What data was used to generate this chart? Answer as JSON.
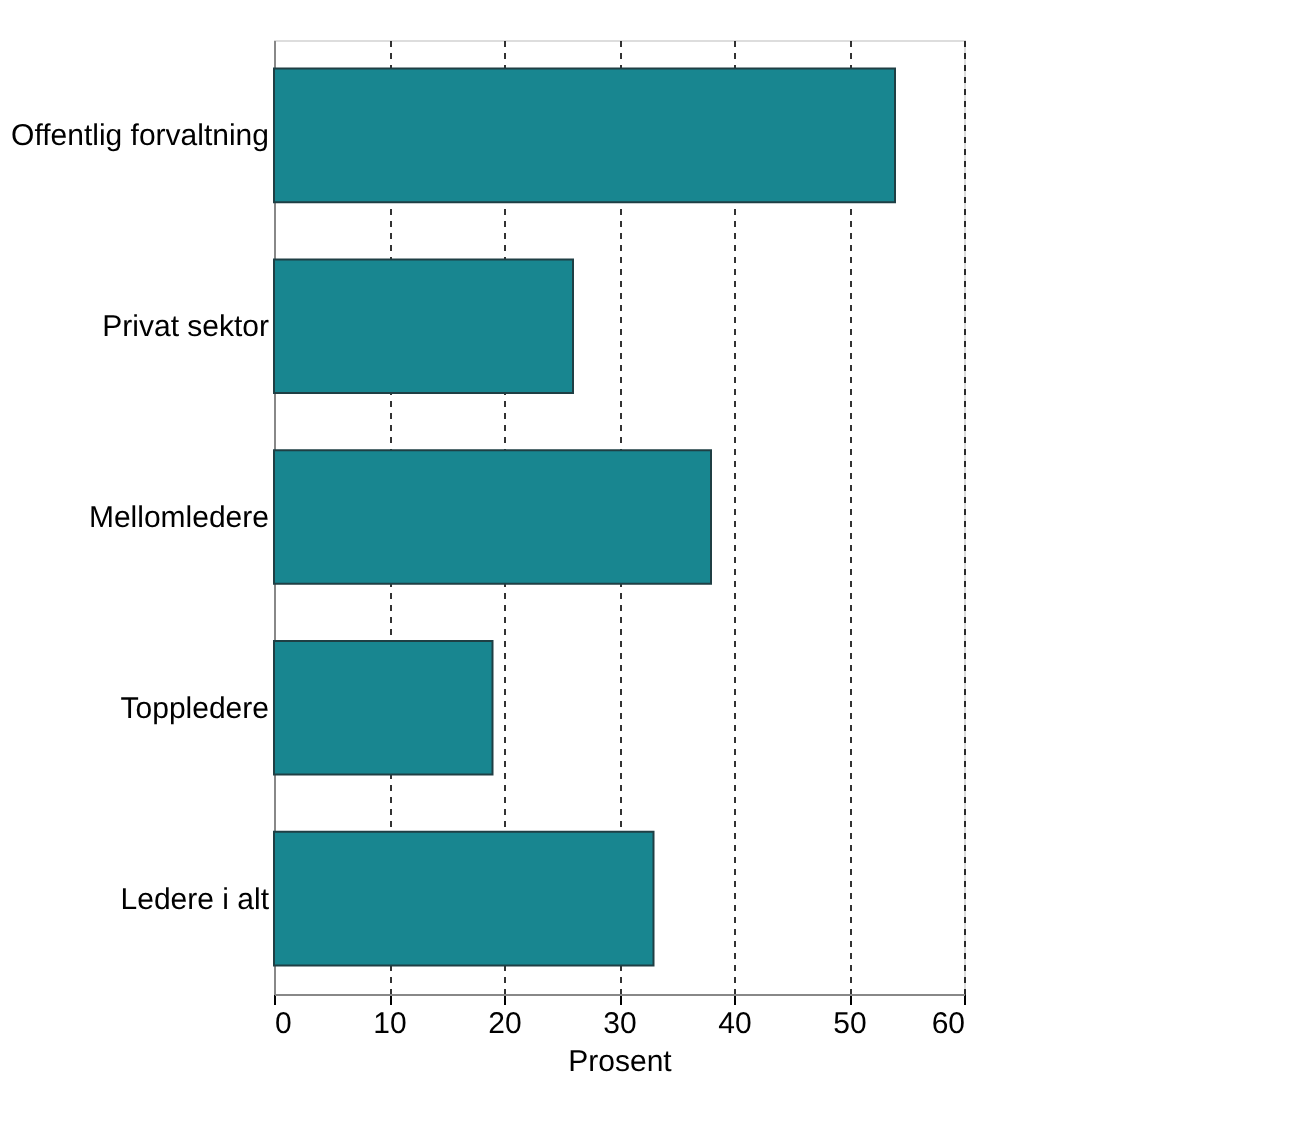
{
  "chart_data": {
    "type": "bar",
    "orientation": "horizontal",
    "xlabel": "Prosent",
    "categories": [
      "Offentlig forvaltning",
      "Privat sektor",
      "Mellomledere",
      "Toppledere",
      "Ledere i alt"
    ],
    "values": [
      54,
      26,
      38,
      19,
      33
    ],
    "color": "#188690",
    "xlim": [
      0,
      60
    ],
    "xticks": [
      0,
      10,
      20,
      30,
      40,
      50,
      60
    ],
    "grid": "x"
  }
}
